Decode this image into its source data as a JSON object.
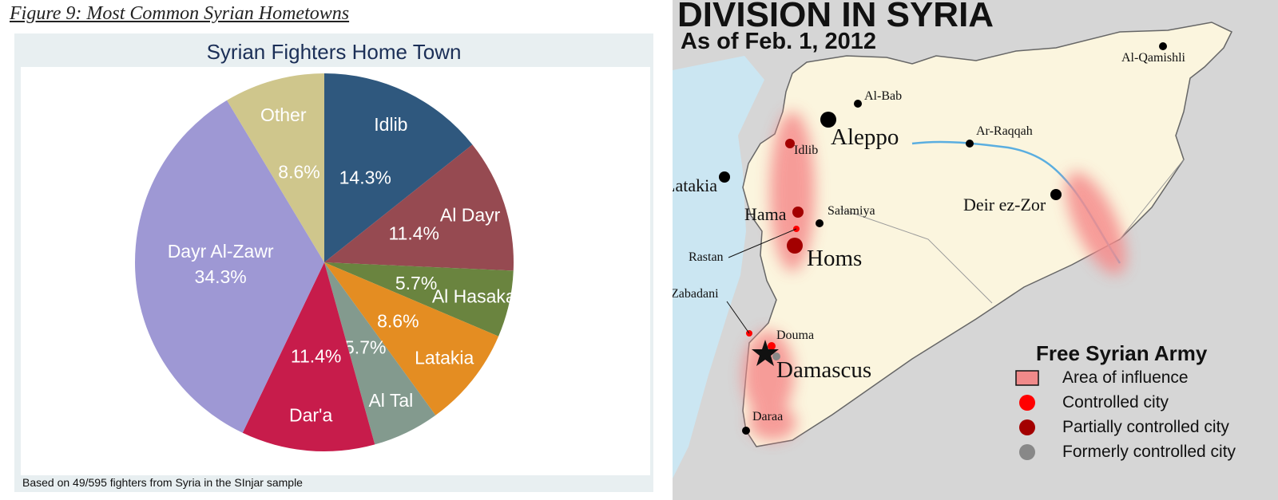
{
  "figure_caption": "Figure 9: Most Common Syrian Hometowns",
  "chart_data": {
    "type": "pie",
    "title": "Syrian Fighters Home Town",
    "note": "Based on 49/595 fighters from Syria in the SInjar sample",
    "slices": [
      {
        "label": "Idlib",
        "value": 14.3,
        "value_label": "14.3%",
        "color": "#2f587e"
      },
      {
        "label": "Al Dayr",
        "value": 11.4,
        "value_label": "11.4%",
        "color": "#964a51"
      },
      {
        "label": "Al Hasaka",
        "value": 5.7,
        "value_label": "5.7%",
        "color": "#6a843f"
      },
      {
        "label": "Latakia",
        "value": 8.6,
        "value_label": "8.6%",
        "color": "#e48d22"
      },
      {
        "label": "Al Tal",
        "value": 5.7,
        "value_label": "5.7%",
        "color": "#839a8e"
      },
      {
        "label": "Dar'a",
        "value": 11.4,
        "value_label": "11.4%",
        "color": "#c71c4b"
      },
      {
        "label": "Dayr Al-Zawr",
        "value": 34.3,
        "value_label": "34.3%",
        "color": "#9e98d4"
      },
      {
        "label": "Other",
        "value": 8.6,
        "value_label": "8.6%",
        "color": "#cfc68c"
      }
    ]
  },
  "map": {
    "title": "DIVISION IN SYRIA",
    "subtitle": "As of Feb. 1, 2012",
    "cities": {
      "aleppo": "Aleppo",
      "al_bab": "Al-Bab",
      "al_qamishli": "Al-Qamishli",
      "ar_raqqah": "Ar-Raqqah",
      "idlib": "Idlib",
      "latakia": "Latakia",
      "hama": "Hama",
      "salamiya": "Salamiya",
      "rastan": "Rastan",
      "homs": "Homs",
      "deir_ez_zor": "Deir ez-Zor",
      "zabadani": "Zabadani",
      "douma": "Douma",
      "damascus": "Damascus",
      "daraa": "Daraa"
    },
    "legend": {
      "title": "Free Syrian Army",
      "items": [
        {
          "label": "Area of influence",
          "color": "#f08a8a"
        },
        {
          "label": "Controlled city",
          "color": "#ff0000"
        },
        {
          "label": "Partially controlled city",
          "color": "#a30000"
        },
        {
          "label": "Formerly controlled city",
          "color": "#888888"
        }
      ]
    },
    "colors": {
      "land": "#fbf5de",
      "sea": "#cbe6f2",
      "neighbor": "#d6d6d6",
      "influence": "#f58c8c"
    }
  }
}
